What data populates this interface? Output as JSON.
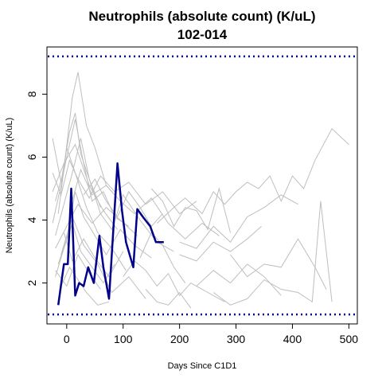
{
  "chart_data": {
    "type": "line",
    "title": "Neutrophils (absolute count) (K/uL)",
    "subtitle": "102-014",
    "xlabel": "Days Since C1D1",
    "ylabel": "Neutrophils (absolute count) (K/uL)",
    "xlim": [
      -35,
      515
    ],
    "ylim": [
      0.7,
      9.5
    ],
    "x_ticks": [
      0,
      100,
      200,
      300,
      400,
      500
    ],
    "y_ticks": [
      2,
      4,
      6,
      8
    ],
    "reference_lines": [
      {
        "y": 9.2,
        "color": "#00008B",
        "style": "dotted"
      },
      {
        "y": 1.0,
        "color": "#00008B",
        "style": "dotted"
      }
    ],
    "background_series_color": "#BEBEBE",
    "highlight_color": "#00008B",
    "background_series": [
      {
        "x": [
          -25,
          -10,
          5,
          15,
          25,
          40,
          60
        ],
        "y": [
          6.6,
          5.2,
          6.8,
          7.4,
          6.1,
          5.3,
          4.4
        ]
      },
      {
        "x": [
          -20,
          -5,
          10,
          20,
          35,
          50,
          70,
          90
        ],
        "y": [
          4.6,
          5.6,
          7.9,
          8.7,
          7.0,
          6.3,
          5.1,
          4.7
        ]
      },
      {
        "x": [
          -25,
          -10,
          0,
          15,
          30,
          45,
          65,
          85,
          110
        ],
        "y": [
          3.9,
          5.1,
          6.0,
          7.2,
          5.8,
          4.6,
          4.9,
          4.1,
          3.8
        ]
      },
      {
        "x": [
          -20,
          -5,
          10,
          25,
          40,
          60,
          80,
          100,
          130,
          160,
          190
        ],
        "y": [
          3.5,
          4.5,
          5.5,
          6.6,
          5.3,
          4.2,
          3.7,
          4.8,
          4.0,
          3.3,
          3.0
        ]
      },
      {
        "x": [
          -15,
          0,
          15,
          30,
          50,
          70,
          95,
          120,
          150
        ],
        "y": [
          2.6,
          3.4,
          4.9,
          4.1,
          3.5,
          2.9,
          3.7,
          3.2,
          2.8
        ]
      },
      {
        "x": [
          -20,
          -5,
          10,
          25,
          45,
          65,
          85
        ],
        "y": [
          2.2,
          3.1,
          3.9,
          3.0,
          2.5,
          2.0,
          2.6
        ]
      },
      {
        "x": [
          -10,
          5,
          20,
          35,
          55,
          75
        ],
        "y": [
          1.9,
          2.5,
          2.1,
          1.7,
          1.3,
          1.4
        ]
      },
      {
        "x": [
          -25,
          -10,
          5,
          20,
          40,
          60,
          85,
          110,
          140,
          170,
          200,
          230
        ],
        "y": [
          5.5,
          4.8,
          5.9,
          5.3,
          4.7,
          5.4,
          4.9,
          5.2,
          4.5,
          4.9,
          4.2,
          4.6
        ]
      },
      {
        "x": [
          -15,
          0,
          15,
          35,
          55,
          80,
          105
        ],
        "y": [
          4.2,
          6.3,
          5.5,
          4.4,
          3.6,
          3.1,
          2.4
        ]
      },
      {
        "x": [
          -20,
          0,
          20,
          45,
          70,
          95,
          125
        ],
        "y": [
          3.1,
          3.8,
          4.5,
          3.9,
          4.4,
          4.0,
          3.5
        ]
      },
      {
        "x": [
          -10,
          10,
          30,
          55,
          80,
          110,
          140
        ],
        "y": [
          2.9,
          4.1,
          3.2,
          2.6,
          1.7,
          2.2,
          1.5
        ]
      },
      {
        "x": [
          -25,
          -5,
          15,
          40,
          65,
          90
        ],
        "y": [
          4.9,
          5.8,
          6.4,
          5.1,
          4.3,
          3.7
        ]
      },
      {
        "x": [
          -5,
          10,
          30,
          50,
          75,
          100
        ],
        "y": [
          3.6,
          2.7,
          3.4,
          2.8,
          2.2,
          3.0
        ]
      },
      {
        "x": [
          -20,
          0,
          20,
          40,
          60
        ],
        "y": [
          2.4,
          1.9,
          2.9,
          2.3,
          1.8
        ]
      },
      {
        "x": [
          5,
          25,
          45,
          70,
          95,
          120,
          150,
          180,
          210,
          240,
          270
        ],
        "y": [
          4.3,
          5.6,
          4.8,
          5.1,
          4.6,
          4.2,
          4.7,
          3.9,
          3.4,
          3.9,
          3.5
        ]
      },
      {
        "x": [
          30,
          50,
          70,
          90,
          110,
          130,
          150,
          170
        ],
        "y": [
          4.8,
          5.3,
          4.6,
          4.1,
          4.9,
          4.4,
          3.8,
          4.2
        ]
      },
      {
        "x": [
          130,
          150,
          170,
          190,
          210
        ],
        "y": [
          2.8,
          3.6,
          3.2,
          2.5,
          2.0
        ]
      },
      {
        "x": [
          100,
          120,
          140,
          160,
          180,
          200,
          220,
          250,
          280
        ],
        "y": [
          2.2,
          2.7,
          2.4,
          1.9,
          2.3,
          1.6,
          2.0,
          1.7,
          1.4
        ]
      },
      {
        "x": [
          140,
          160,
          180,
          200,
          220
        ],
        "y": [
          1.8,
          1.4,
          1.3,
          1.7,
          1.2
        ]
      },
      {
        "x": [
          150,
          170,
          190,
          210,
          230,
          250,
          270,
          290
        ],
        "y": [
          5.0,
          4.6,
          3.8,
          4.4,
          4.3,
          3.7,
          5.0,
          3.6
        ]
      },
      {
        "x": [
          160,
          190,
          210,
          240,
          260,
          280,
          300,
          320,
          340,
          360,
          380,
          400,
          420,
          440,
          470,
          500
        ],
        "y": [
          3.9,
          4.4,
          4.7,
          4.2,
          4.9,
          4.5,
          4.9,
          5.2,
          5.0,
          5.4,
          4.6,
          5.4,
          5.0,
          5.9,
          6.9,
          6.4
        ]
      },
      {
        "x": [
          200,
          230,
          260,
          290,
          320,
          350,
          380,
          410
        ],
        "y": [
          3.3,
          3.1,
          3.8,
          3.3,
          4.1,
          4.4,
          4.8,
          4.5
        ]
      },
      {
        "x": [
          200,
          230,
          260,
          290,
          320,
          345
        ],
        "y": [
          2.9,
          2.7,
          3.3,
          3.0,
          3.4,
          3.8
        ]
      },
      {
        "x": [
          230,
          260,
          290,
          320,
          350,
          380
        ],
        "y": [
          1.9,
          2.4,
          2.0,
          2.6,
          2.2,
          1.6
        ]
      },
      {
        "x": [
          260,
          290,
          320,
          350,
          380,
          410,
          435,
          450,
          470
        ],
        "y": [
          1.7,
          1.3,
          1.5,
          2.1,
          1.8,
          1.7,
          1.4,
          4.6,
          1.4
        ]
      },
      {
        "x": [
          290,
          320,
          350,
          380,
          410,
          440,
          460
        ],
        "y": [
          2.9,
          2.2,
          2.6,
          2.5,
          3.4,
          2.5,
          1.8
        ]
      }
    ],
    "series": [
      {
        "x": [
          -15,
          -5,
          2,
          8,
          15,
          22,
          30,
          38,
          48,
          58,
          65,
          75,
          90,
          98,
          105,
          118,
          125,
          135,
          148,
          158,
          172
        ],
        "y": [
          1.3,
          2.6,
          2.6,
          5.0,
          1.6,
          2.0,
          1.9,
          2.5,
          2.0,
          3.5,
          2.5,
          1.5,
          5.8,
          4.3,
          3.3,
          2.5,
          4.35,
          4.1,
          3.8,
          3.3,
          3.3
        ]
      }
    ]
  }
}
